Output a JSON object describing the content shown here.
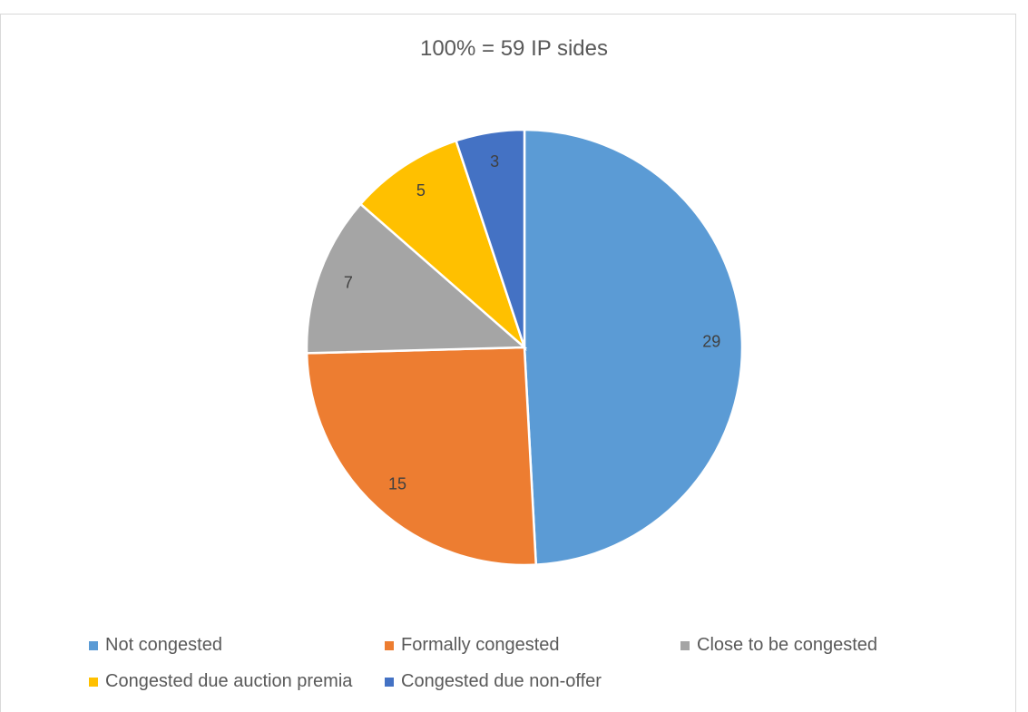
{
  "chart_data": {
    "type": "pie",
    "title": "100% = 59 IP sides",
    "total": 59,
    "legend_position": "bottom",
    "slices": [
      {
        "label": "Not congested",
        "value": 29,
        "color": "#5B9BD5"
      },
      {
        "label": "Formally congested",
        "value": 15,
        "color": "#ED7D31"
      },
      {
        "label": "Close to be congested",
        "value": 7,
        "color": "#A5A5A5"
      },
      {
        "label": "Congested due auction premia",
        "value": 5,
        "color": "#FFC000"
      },
      {
        "label": "Congested due non-offer",
        "value": 3,
        "color": "#4472C4"
      }
    ]
  }
}
